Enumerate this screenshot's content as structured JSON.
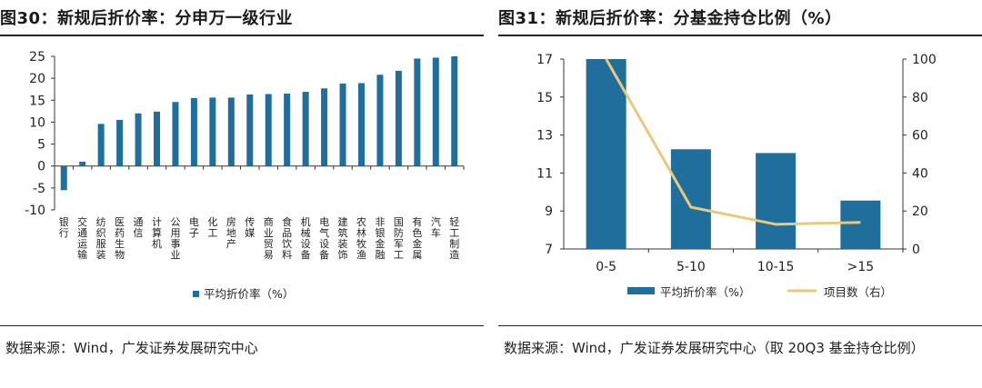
{
  "figure30": {
    "title": "图30：新规后折价率：分申万一级行业",
    "source": "数据来源：Wind，广发证券发展研究中心",
    "legend_label": "平均折价率（%）"
  },
  "figure31": {
    "title": "图31：新规后折价率：分基金持仓比例（%）",
    "source": "数据来源：Wind，广发证券发展研究中心（取 20Q3 基金持仓比例）",
    "legend_bar_label": "平均折价率（%）",
    "legend_line_label": "项目数（右）"
  },
  "colors": {
    "bar": "#1f6e9c",
    "line": "#e9c97e",
    "axis": "#333333"
  },
  "chart_data": [
    {
      "type": "bar",
      "categories": [
        "银行",
        "交通运输",
        "纺织服装",
        "医药生物",
        "通信",
        "计算机",
        "公用事业",
        "电子",
        "化工",
        "房地产",
        "传媒",
        "商业贸易",
        "食品饮料",
        "机械设备",
        "电气设备",
        "建筑装饰",
        "农林牧渔",
        "非银金融",
        "国防军工",
        "有色金属",
        "汽车",
        "轻工制造"
      ],
      "series": [
        {
          "name": "平均折价率（%）",
          "values": [
            -5.5,
            1.0,
            9.6,
            10.5,
            12.0,
            12.4,
            14.6,
            15.5,
            15.6,
            15.6,
            16.3,
            16.4,
            16.5,
            16.9,
            17.7,
            18.8,
            18.9,
            20.8,
            21.7,
            24.5,
            24.7,
            25.0
          ]
        }
      ],
      "yticks": [
        25,
        20,
        15,
        10,
        5,
        0,
        -5,
        -10
      ],
      "ylim": [
        -10,
        25
      ]
    },
    {
      "type": "bar",
      "categories": [
        "0-5",
        "5-10",
        "10-15",
        ">15"
      ],
      "series": [
        {
          "name": "平均折价率（%）",
          "type": "bar",
          "axis": "left",
          "values": [
            17.0,
            12.25,
            12.05,
            9.55
          ]
        },
        {
          "name": "项目数（右）",
          "type": "line",
          "axis": "right",
          "values": [
            100,
            22,
            13,
            14
          ]
        }
      ],
      "ylim": [
        7,
        17
      ],
      "yticks": [
        17,
        15,
        13,
        11,
        9,
        7
      ],
      "y2lim": [
        0,
        100
      ],
      "y2ticks": [
        100,
        80,
        60,
        40,
        20,
        0
      ]
    }
  ]
}
